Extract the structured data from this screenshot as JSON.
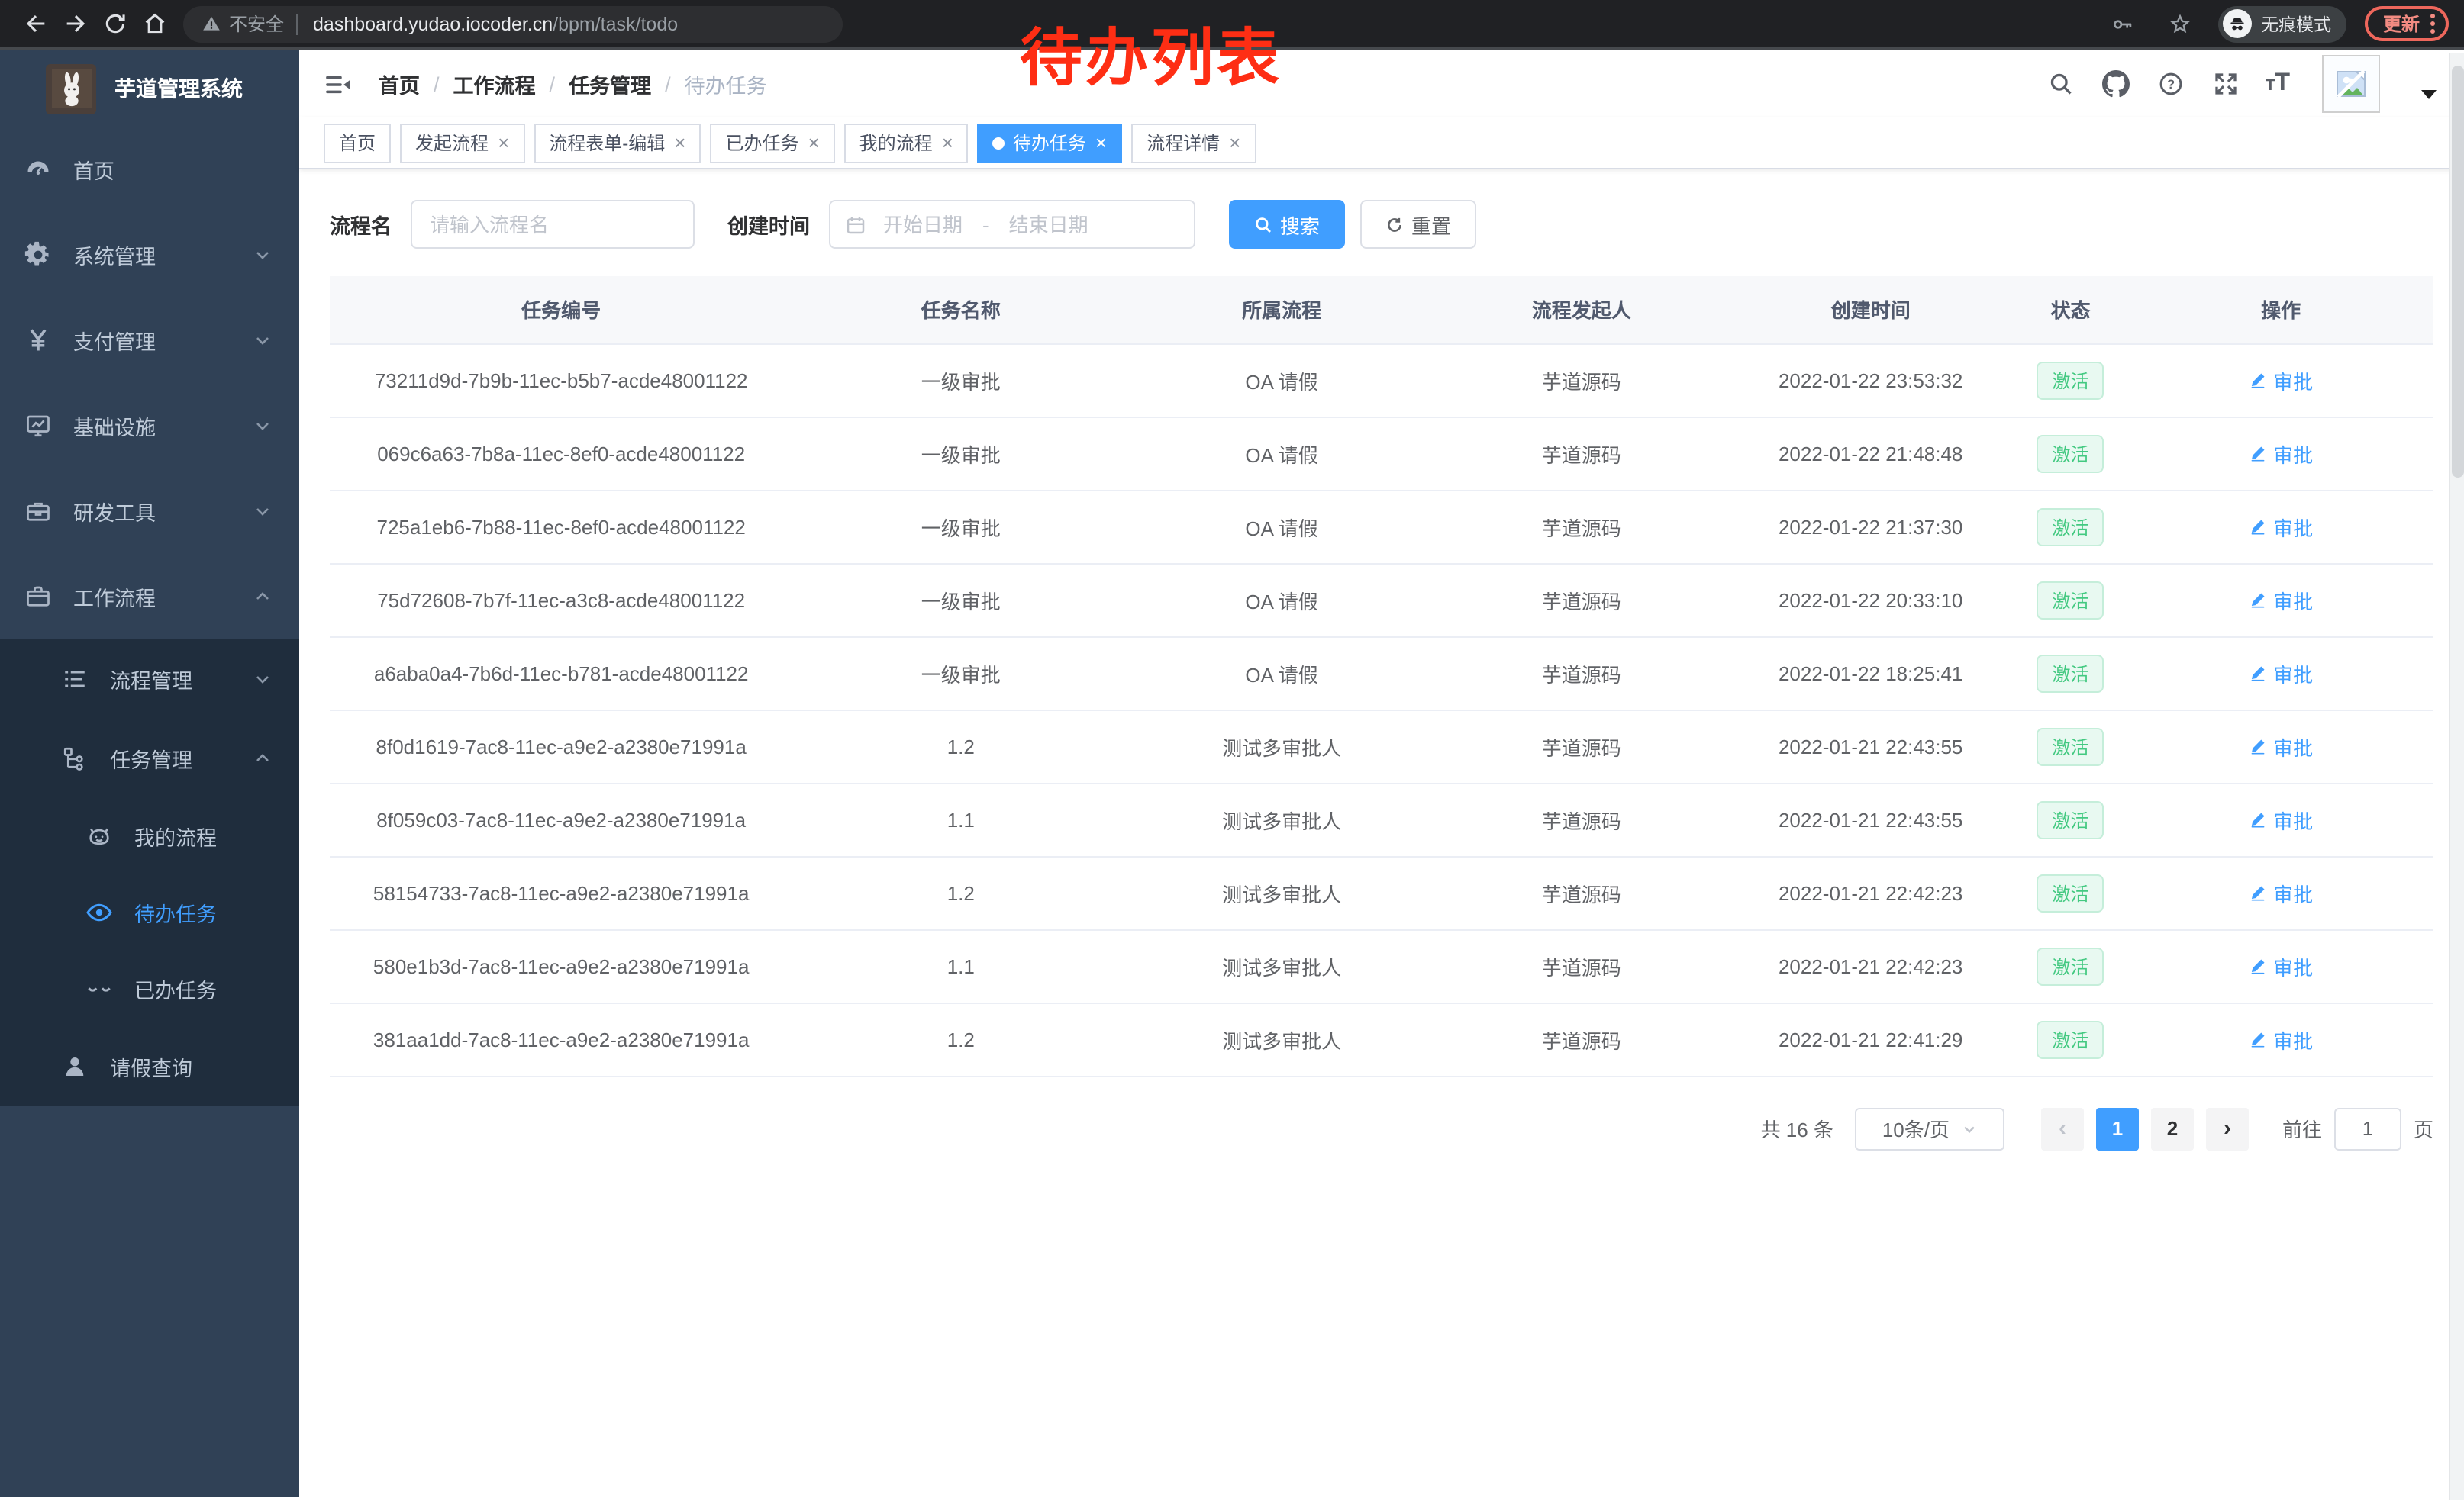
{
  "browser": {
    "security_label": "不安全",
    "url_host": "dashboard.yudao.iocoder.cn",
    "url_path": "/bpm/task/todo",
    "incognito_label": "无痕模式",
    "update_label": "更新"
  },
  "annotation": {
    "text": "待办列表",
    "color": "#fe2e14"
  },
  "sidebar": {
    "title": "芋道管理系统",
    "items": [
      {
        "label": "首页",
        "icon": "dashboard-icon",
        "level": 1,
        "chevron": "",
        "submenu": false,
        "active": false
      },
      {
        "label": "系统管理",
        "icon": "gear-icon",
        "level": 1,
        "chevron": "down",
        "submenu": false,
        "active": false
      },
      {
        "label": "支付管理",
        "icon": "yen-icon",
        "level": 1,
        "chevron": "down",
        "submenu": false,
        "active": false
      },
      {
        "label": "基础设施",
        "icon": "monitor-icon",
        "level": 1,
        "chevron": "down",
        "submenu": false,
        "active": false
      },
      {
        "label": "研发工具",
        "icon": "toolbox-icon",
        "level": 1,
        "chevron": "down",
        "submenu": false,
        "active": false
      },
      {
        "label": "工作流程",
        "icon": "briefcase-icon",
        "level": 1,
        "chevron": "up",
        "submenu": false,
        "active": false
      },
      {
        "label": "流程管理",
        "icon": "list-tree-icon",
        "level": 2,
        "chevron": "down",
        "submenu": true,
        "active": false
      },
      {
        "label": "任务管理",
        "icon": "flow-icon",
        "level": 2,
        "chevron": "up",
        "submenu": true,
        "active": false
      },
      {
        "label": "我的流程",
        "icon": "robot-icon",
        "level": 3,
        "chevron": "",
        "submenu": true,
        "active": false
      },
      {
        "label": "待办任务",
        "icon": "eye-open-icon",
        "level": 3,
        "chevron": "",
        "submenu": true,
        "active": true
      },
      {
        "label": "已办任务",
        "icon": "eye-closed-icon",
        "level": 3,
        "chevron": "",
        "submenu": true,
        "active": false
      },
      {
        "label": "请假查询",
        "icon": "user-icon",
        "level": 2,
        "chevron": "",
        "submenu": true,
        "active": false
      }
    ]
  },
  "header": {
    "breadcrumb": [
      "首页",
      "工作流程",
      "任务管理",
      "待办任务"
    ]
  },
  "tabs": [
    {
      "label": "首页",
      "closable": false,
      "active": false
    },
    {
      "label": "发起流程",
      "closable": true,
      "active": false
    },
    {
      "label": "流程表单-编辑",
      "closable": true,
      "active": false
    },
    {
      "label": "已办任务",
      "closable": true,
      "active": false
    },
    {
      "label": "我的流程",
      "closable": true,
      "active": false
    },
    {
      "label": "待办任务",
      "closable": true,
      "active": true
    },
    {
      "label": "流程详情",
      "closable": true,
      "active": false
    }
  ],
  "filters": {
    "name_label": "流程名",
    "name_placeholder": "请输入流程名",
    "time_label": "创建时间",
    "start_placeholder": "开始日期",
    "separator": "-",
    "end_placeholder": "结束日期",
    "search_label": "搜索",
    "reset_label": "重置"
  },
  "table": {
    "columns": [
      "任务编号",
      "任务名称",
      "所属流程",
      "流程发起人",
      "创建时间",
      "状态",
      "操作"
    ],
    "rows": [
      {
        "id": "73211d9d-7b9b-11ec-b5b7-acde48001122",
        "name": "一级审批",
        "process": "OA 请假",
        "starter": "芋道源码",
        "time": "2022-01-22 23:53:32",
        "status": "激活",
        "action": "审批"
      },
      {
        "id": "069c6a63-7b8a-11ec-8ef0-acde48001122",
        "name": "一级审批",
        "process": "OA 请假",
        "starter": "芋道源码",
        "time": "2022-01-22 21:48:48",
        "status": "激活",
        "action": "审批"
      },
      {
        "id": "725a1eb6-7b88-11ec-8ef0-acde48001122",
        "name": "一级审批",
        "process": "OA 请假",
        "starter": "芋道源码",
        "time": "2022-01-22 21:37:30",
        "status": "激活",
        "action": "审批"
      },
      {
        "id": "75d72608-7b7f-11ec-a3c8-acde48001122",
        "name": "一级审批",
        "process": "OA 请假",
        "starter": "芋道源码",
        "time": "2022-01-22 20:33:10",
        "status": "激活",
        "action": "审批"
      },
      {
        "id": "a6aba0a4-7b6d-11ec-b781-acde48001122",
        "name": "一级审批",
        "process": "OA 请假",
        "starter": "芋道源码",
        "time": "2022-01-22 18:25:41",
        "status": "激活",
        "action": "审批"
      },
      {
        "id": "8f0d1619-7ac8-11ec-a9e2-a2380e71991a",
        "name": "1.2",
        "process": "测试多审批人",
        "starter": "芋道源码",
        "time": "2022-01-21 22:43:55",
        "status": "激活",
        "action": "审批"
      },
      {
        "id": "8f059c03-7ac8-11ec-a9e2-a2380e71991a",
        "name": "1.1",
        "process": "测试多审批人",
        "starter": "芋道源码",
        "time": "2022-01-21 22:43:55",
        "status": "激活",
        "action": "审批"
      },
      {
        "id": "58154733-7ac8-11ec-a9e2-a2380e71991a",
        "name": "1.2",
        "process": "测试多审批人",
        "starter": "芋道源码",
        "time": "2022-01-21 22:42:23",
        "status": "激活",
        "action": "审批"
      },
      {
        "id": "580e1b3d-7ac8-11ec-a9e2-a2380e71991a",
        "name": "1.1",
        "process": "测试多审批人",
        "starter": "芋道源码",
        "time": "2022-01-21 22:42:23",
        "status": "激活",
        "action": "审批"
      },
      {
        "id": "381aa1dd-7ac8-11ec-a9e2-a2380e71991a",
        "name": "1.2",
        "process": "测试多审批人",
        "starter": "芋道源码",
        "time": "2022-01-21 22:41:29",
        "status": "激活",
        "action": "审批"
      }
    ]
  },
  "pagination": {
    "total_label": "共 16 条",
    "page_size": "10条/页",
    "pages": [
      "1",
      "2"
    ],
    "active_page": "1",
    "prev_label": "‹",
    "next_label": "›",
    "goto_label": "前往",
    "goto_value": "1",
    "page_label": "页"
  },
  "colors": {
    "accent": "#409eff",
    "sidebar_bg": "#304156",
    "submenu_bg": "#1f2d3d",
    "success_text": "#43c981",
    "success_bg": "#e8f9f1",
    "annotation_red": "#fe2e14",
    "chrome_bg": "#202124"
  }
}
